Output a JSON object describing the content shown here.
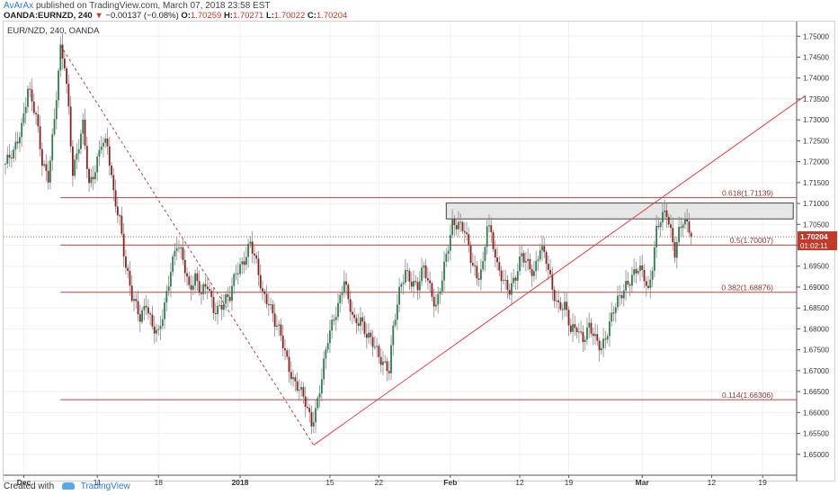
{
  "header": {
    "author": "AvArAx",
    "published_text": "published on TradingView.com, March 07, 2018 23:58 EST",
    "symbol": "OANDA:EURNZD, 240",
    "change_arrow": "▼",
    "change_text": "−0.00137 (−0.08%)",
    "open_label": "O:",
    "open_value": "1.70259",
    "high_label": "H:",
    "high_value": "1.70271",
    "low_label": "L:",
    "low_value": "1.70022",
    "close_label": "C:",
    "close_value": "1.70204",
    "last_price": "1.70204"
  },
  "footer": {
    "created_with": "Created with",
    "brand": "TradingView"
  },
  "chart_data": {
    "type": "candlestick",
    "title": "EUR/NZD, 240, OANDA",
    "y_range": [
      1.645,
      1.7535
    ],
    "y_ticks": [
      "1.75000",
      "1.74500",
      "1.74000",
      "1.73500",
      "1.73000",
      "1.72500",
      "1.72000",
      "1.71500",
      "1.71000",
      "1.70500",
      "1.70000",
      "1.69500",
      "1.69000",
      "1.68500",
      "1.68000",
      "1.67500",
      "1.67000",
      "1.66500",
      "1.66000",
      "1.65500",
      "1.65000"
    ],
    "x_ticks": [
      {
        "label": "Dec",
        "bold": true,
        "i": 9
      },
      {
        "label": "11",
        "bold": false,
        "i": 45
      },
      {
        "label": "18",
        "bold": false,
        "i": 75
      },
      {
        "label": "2018",
        "bold": true,
        "i": 115
      },
      {
        "label": "15",
        "bold": false,
        "i": 159
      },
      {
        "label": "22",
        "bold": false,
        "i": 183
      },
      {
        "label": "Feb",
        "bold": true,
        "i": 218
      },
      {
        "label": "12",
        "bold": false,
        "i": 252
      },
      {
        "label": "19",
        "bold": false,
        "i": 276
      },
      {
        "label": "Mar",
        "bold": true,
        "i": 312
      },
      {
        "label": "12",
        "bold": false,
        "i": 346
      },
      {
        "label": "19",
        "bold": false,
        "i": 371
      }
    ],
    "fib_levels": [
      {
        "label": "0.618(1.71139)",
        "price": 1.71139
      },
      {
        "label": "0.5(1.70007)",
        "price": 1.70007
      },
      {
        "label": "0.382(1.68876)",
        "price": 1.68876
      },
      {
        "label": "0.114(1.66306)",
        "price": 1.66306
      }
    ],
    "current_price": 1.70204,
    "current_price_label": "1.70204",
    "countdown_label": "01:02:11",
    "resistance_zone": {
      "i_start": 216,
      "i_end": 386,
      "price_top": 1.7101,
      "price_bottom": 1.7063
    },
    "trendline": {
      "i1": 151,
      "p1": 1.6522,
      "i2": 392,
      "p2": 1.7358
    },
    "dashed_line": {
      "i1": 27,
      "p1": 1.7478,
      "i2": 151,
      "p2": 1.6522
    },
    "anchors": [
      [
        0,
        1.7195
      ],
      [
        4,
        1.7215
      ],
      [
        8,
        1.729
      ],
      [
        11,
        1.738
      ],
      [
        15,
        1.73
      ],
      [
        18,
        1.72
      ],
      [
        21,
        1.717
      ],
      [
        24,
        1.73
      ],
      [
        27,
        1.746
      ],
      [
        29,
        1.743
      ],
      [
        31,
        1.733
      ],
      [
        33,
        1.718
      ],
      [
        36,
        1.724
      ],
      [
        38,
        1.728
      ],
      [
        41,
        1.714
      ],
      [
        44,
        1.719
      ],
      [
        47,
        1.725
      ],
      [
        50,
        1.723
      ],
      [
        53,
        1.712
      ],
      [
        56,
        1.707
      ],
      [
        59,
        1.695
      ],
      [
        62,
        1.687
      ],
      [
        66,
        1.683
      ],
      [
        69,
        1.687
      ],
      [
        72,
        1.68
      ],
      [
        75,
        1.678
      ],
      [
        78,
        1.686
      ],
      [
        81,
        1.695
      ],
      [
        84,
        1.7
      ],
      [
        87,
        1.696
      ],
      [
        90,
        1.69
      ],
      [
        93,
        1.693
      ],
      [
        96,
        1.688
      ],
      [
        99,
        1.69
      ],
      [
        102,
        1.685
      ],
      [
        106,
        1.686
      ],
      [
        110,
        1.687
      ],
      [
        113,
        1.694
      ],
      [
        117,
        1.697
      ],
      [
        120,
        1.7
      ],
      [
        123,
        1.695
      ],
      [
        126,
        1.689
      ],
      [
        129,
        1.687
      ],
      [
        132,
        1.681
      ],
      [
        135,
        1.678
      ],
      [
        138,
        1.673
      ],
      [
        141,
        1.668
      ],
      [
        144,
        1.665
      ],
      [
        147,
        1.662
      ],
      [
        150,
        1.658
      ],
      [
        152,
        1.661
      ],
      [
        155,
        1.668
      ],
      [
        158,
        1.677
      ],
      [
        161,
        1.683
      ],
      [
        164,
        1.688
      ],
      [
        166,
        1.692
      ],
      [
        168,
        1.686
      ],
      [
        171,
        1.681
      ],
      [
        174,
        1.683
      ],
      [
        177,
        1.679
      ],
      [
        180,
        1.676
      ],
      [
        183,
        1.673
      ],
      [
        186,
        1.672
      ],
      [
        188,
        1.671
      ],
      [
        190,
        1.68
      ],
      [
        193,
        1.688
      ],
      [
        196,
        1.694
      ],
      [
        199,
        1.692
      ],
      [
        202,
        1.69
      ],
      [
        205,
        1.694
      ],
      [
        208,
        1.69
      ],
      [
        211,
        1.686
      ],
      [
        214,
        1.692
      ],
      [
        217,
        1.699
      ],
      [
        219,
        1.705
      ],
      [
        222,
        1.706
      ],
      [
        225,
        1.704
      ],
      [
        228,
        1.696
      ],
      [
        231,
        1.692
      ],
      [
        234,
        1.696
      ],
      [
        236,
        1.706
      ],
      [
        238,
        1.702
      ],
      [
        241,
        1.694
      ],
      [
        244,
        1.692
      ],
      [
        247,
        1.69
      ],
      [
        250,
        1.692
      ],
      [
        253,
        1.697
      ],
      [
        256,
        1.696
      ],
      [
        259,
        1.694
      ],
      [
        262,
        1.699
      ],
      [
        265,
        1.696
      ],
      [
        268,
        1.69
      ],
      [
        271,
        1.686
      ],
      [
        274,
        1.685
      ],
      [
        277,
        1.679
      ],
      [
        280,
        1.681
      ],
      [
        283,
        1.678
      ],
      [
        286,
        1.68
      ],
      [
        289,
        1.677
      ],
      [
        292,
        1.676
      ],
      [
        295,
        1.68
      ],
      [
        298,
        1.684
      ],
      [
        301,
        1.687
      ],
      [
        304,
        1.691
      ],
      [
        307,
        1.693
      ],
      [
        310,
        1.694
      ],
      [
        313,
        1.692
      ],
      [
        315,
        1.689
      ],
      [
        317,
        1.696
      ],
      [
        319,
        1.704
      ],
      [
        321,
        1.706
      ],
      [
        324,
        1.707
      ],
      [
        326,
        1.703
      ],
      [
        328,
        1.699
      ],
      [
        330,
        1.704
      ],
      [
        332,
        1.706
      ],
      [
        334,
        1.704
      ],
      [
        336,
        1.702
      ]
    ]
  }
}
